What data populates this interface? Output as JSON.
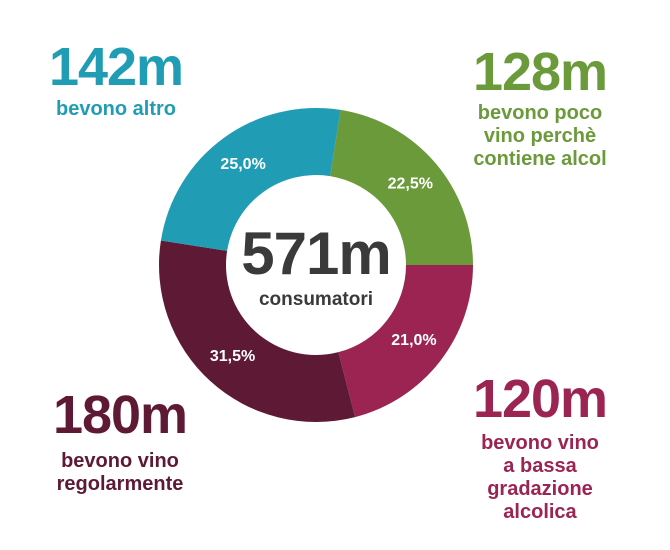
{
  "chart_data": {
    "type": "donut",
    "center_value": "571m",
    "center_label": "consumatori",
    "categories": [
      "bevono poco\nvino perchè\ncontiene alcol",
      "bevono vino\na bassa\ngradazione\nalcolica",
      "bevono vino\nregolarmente",
      "bevono altro"
    ],
    "amount_labels": [
      "128m",
      "120m",
      "180m",
      "142m"
    ],
    "values": [
      22.5,
      21.0,
      31.5,
      25.0
    ],
    "value_labels": [
      "22,5%",
      "21,0%",
      "31,5%",
      "25,0%"
    ],
    "colors": [
      "#6b9a3a",
      "#9b2453",
      "#5e1a34",
      "#209db5"
    ]
  }
}
